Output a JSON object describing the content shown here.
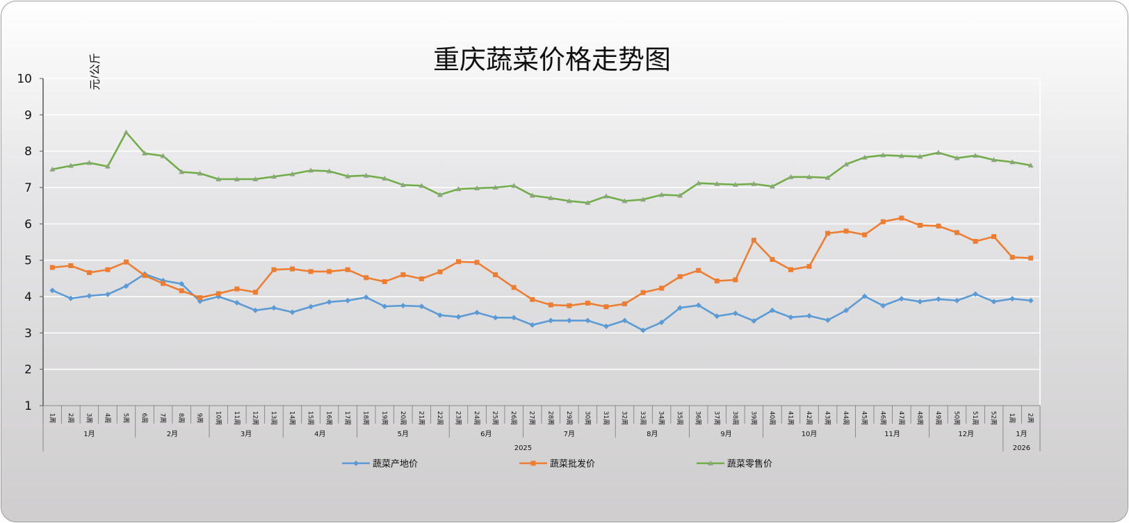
{
  "chart_data": {
    "type": "line",
    "title": "重庆蔬菜价格走势图",
    "ylabel": "元/公斤",
    "xlabel": "",
    "ylim": [
      1,
      10
    ],
    "yticks": [
      1,
      2,
      3,
      4,
      5,
      6,
      7,
      8,
      9,
      10
    ],
    "grid": true,
    "legend_position": "bottom",
    "x": [
      "1周",
      "2周",
      "3周",
      "4周",
      "5周",
      "6周",
      "7周",
      "8周",
      "9周",
      "10周",
      "11周",
      "12周",
      "13周",
      "14周",
      "15周",
      "16周",
      "17周",
      "18周",
      "19周",
      "20周",
      "21周",
      "22周",
      "23周",
      "24周",
      "25周",
      "26周",
      "27周",
      "28周",
      "29周",
      "30周",
      "31周",
      "32周",
      "33周",
      "34周",
      "35周",
      "36周",
      "37周",
      "38周",
      "39周",
      "40周",
      "41周",
      "42周",
      "43周",
      "44周",
      "45周",
      "46周",
      "47周",
      "48周",
      "49周",
      "50周",
      "51周",
      "52周",
      "1周",
      "2周"
    ],
    "months": [
      {
        "label": "1月",
        "span": 5
      },
      {
        "label": "2月",
        "span": 4
      },
      {
        "label": "3月",
        "span": 4
      },
      {
        "label": "4月",
        "span": 4
      },
      {
        "label": "5月",
        "span": 5
      },
      {
        "label": "6月",
        "span": 4
      },
      {
        "label": "7月",
        "span": 5
      },
      {
        "label": "8月",
        "span": 4
      },
      {
        "label": "9月",
        "span": 4
      },
      {
        "label": "10月",
        "span": 5
      },
      {
        "label": "11月",
        "span": 4
      },
      {
        "label": "12月",
        "span": 4
      },
      {
        "label": "1月",
        "span": 2
      }
    ],
    "years": [
      {
        "label": "2025",
        "span": 52
      },
      {
        "label": "2026",
        "span": 2
      }
    ],
    "series": [
      {
        "name": "蔬菜产地价",
        "color": "#5b9bd5",
        "marker": "diamond",
        "values": [
          4.17,
          3.95,
          4.02,
          4.06,
          4.29,
          4.62,
          4.44,
          4.35,
          3.87,
          4.0,
          3.83,
          3.62,
          3.69,
          3.57,
          3.72,
          3.85,
          3.89,
          3.98,
          3.73,
          3.75,
          3.73,
          3.49,
          3.44,
          3.56,
          3.42,
          3.42,
          3.22,
          3.34,
          3.34,
          3.34,
          3.18,
          3.34,
          3.07,
          3.29,
          3.69,
          3.76,
          3.46,
          3.54,
          3.33,
          3.62,
          3.43,
          3.47,
          3.35,
          3.62,
          4.01,
          3.75,
          3.94,
          3.86,
          3.93,
          3.89,
          4.07,
          3.86,
          3.94,
          3.89
        ]
      },
      {
        "name": "蔬菜批发价",
        "color": "#ed7d31",
        "marker": "square",
        "values": [
          4.8,
          4.85,
          4.66,
          4.74,
          4.95,
          4.58,
          4.36,
          4.16,
          3.97,
          4.08,
          4.21,
          4.12,
          4.74,
          4.76,
          4.69,
          4.69,
          4.74,
          4.52,
          4.41,
          4.6,
          4.49,
          4.68,
          4.96,
          4.94,
          4.6,
          4.25,
          3.92,
          3.77,
          3.75,
          3.82,
          3.72,
          3.8,
          4.11,
          4.23,
          4.55,
          4.72,
          4.43,
          4.46,
          5.55,
          5.02,
          4.74,
          4.83,
          5.74,
          5.8,
          5.7,
          6.06,
          6.16,
          5.96,
          5.94,
          5.76,
          5.52,
          5.65,
          5.08,
          5.06
        ]
      },
      {
        "name": "蔬菜零售价",
        "color": "#70ad47",
        "marker": "triangle",
        "values": [
          7.5,
          7.6,
          7.68,
          7.58,
          8.52,
          7.94,
          7.87,
          7.43,
          7.39,
          7.23,
          7.23,
          7.23,
          7.3,
          7.37,
          7.47,
          7.45,
          7.31,
          7.33,
          7.25,
          7.07,
          7.05,
          6.8,
          6.96,
          6.98,
          7.0,
          7.05,
          6.78,
          6.71,
          6.63,
          6.58,
          6.76,
          6.63,
          6.67,
          6.8,
          6.78,
          7.12,
          7.1,
          7.08,
          7.1,
          7.03,
          7.29,
          7.29,
          7.27,
          7.64,
          7.83,
          7.89,
          7.87,
          7.85,
          7.96,
          7.81,
          7.88,
          7.76,
          7.7,
          7.61
        ]
      }
    ]
  }
}
